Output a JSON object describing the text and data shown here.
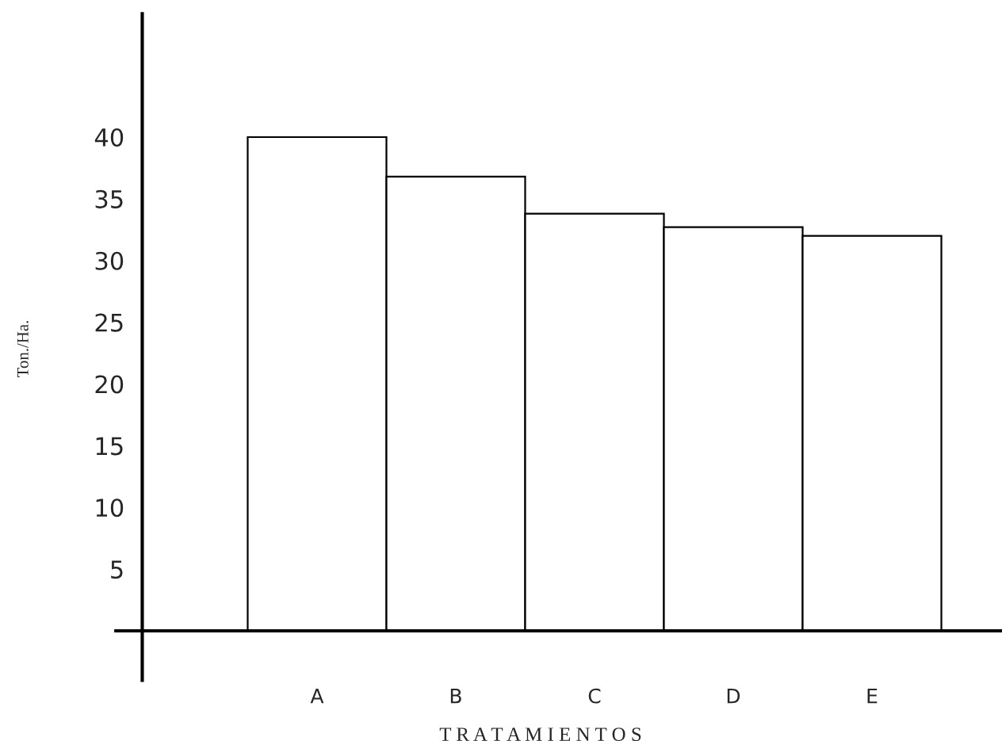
{
  "chart_data": {
    "type": "bar",
    "xlabel": "T R A T A M I E N T O S",
    "ylabel": "Ton./Ha.",
    "categories": [
      "A",
      "B",
      "C",
      "D",
      "E"
    ],
    "values": [
      40,
      36.8,
      33.8,
      32.7,
      32
    ],
    "color": "#ffffff",
    "ylim": [
      -4,
      50
    ],
    "yticks": [
      5,
      10,
      15,
      20,
      25,
      30,
      35,
      40
    ],
    "grid": false,
    "legend": false
  }
}
